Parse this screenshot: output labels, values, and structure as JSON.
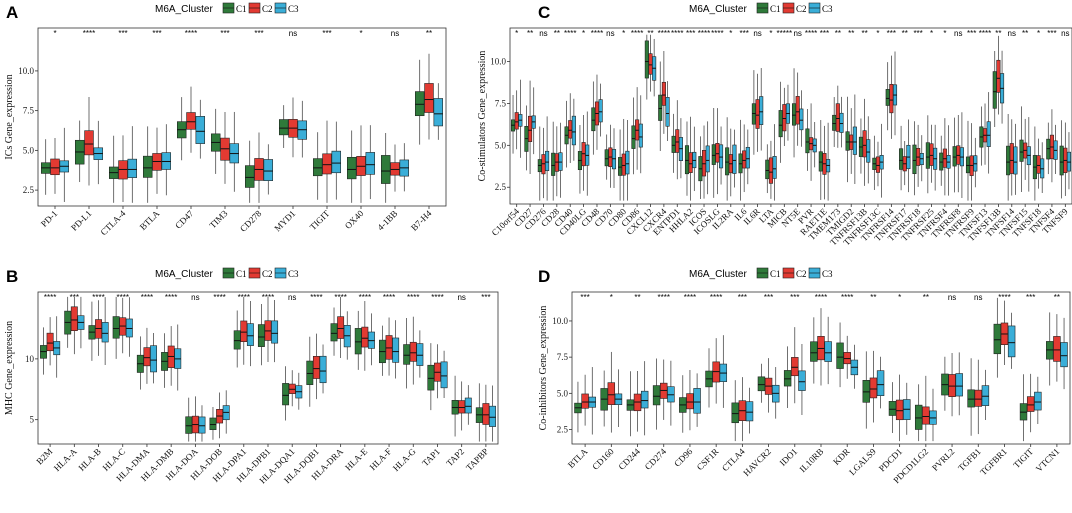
{
  "colors": {
    "C1": "#2f7a3a",
    "C2": "#e23a32",
    "C3": "#3aaed8"
  },
  "chart_data": [
    {
      "panel": "A",
      "type": "boxplot",
      "legend_title": "M6A_Cluster",
      "legend": [
        "C1",
        "C2",
        "C3"
      ],
      "ylabel": "ICs Gene_expression",
      "ylim": [
        1.5,
        12.7
      ],
      "yticks": [
        2.5,
        5.0,
        7.5,
        10.0
      ],
      "ytick_labels": [
        "2.5",
        "5.0",
        "7.5",
        "10.0"
      ],
      "categories": [
        "PD-1",
        "PD-L1",
        "CTLA-4",
        "BTLA",
        "CD47",
        "TIM3",
        "CD278",
        "MYD1",
        "TIGIT",
        "OX40",
        "4-1BB",
        "B7-H4"
      ],
      "significance": [
        "*",
        "****",
        "***",
        "***",
        "****",
        "***",
        "***",
        "ns",
        "***",
        "*",
        "ns",
        "**"
      ],
      "medians": [
        [
          3.9,
          3.9,
          4.0
        ],
        [
          4.9,
          5.4,
          4.8
        ],
        [
          3.6,
          3.8,
          3.8
        ],
        [
          3.9,
          4.3,
          4.3
        ],
        [
          6.3,
          6.8,
          6.2
        ],
        [
          5.5,
          5.1,
          4.8
        ],
        [
          3.3,
          3.8,
          3.7
        ],
        [
          6.4,
          6.4,
          6.3
        ],
        [
          3.9,
          4.1,
          4.2
        ],
        [
          3.8,
          4.0,
          4.1
        ],
        [
          3.7,
          3.8,
          3.9
        ],
        [
          7.9,
          8.2,
          7.3
        ]
      ]
    },
    {
      "panel": "B",
      "type": "boxplot",
      "legend_title": "M6A_Cluster",
      "legend": [
        "C1",
        "C2",
        "C3"
      ],
      "ylabel": "MHC Gene_expression",
      "ylim": [
        3.0,
        15.5
      ],
      "yticks": [
        5,
        10
      ],
      "ytick_labels": [
        "5",
        "10"
      ],
      "categories": [
        "B2M",
        "HLA-A",
        "HLA-B",
        "HLA-C",
        "HLA-DMA",
        "HLA-DMB",
        "HLA-DOA",
        "HLA-DOB",
        "HLA-DPA1",
        "HLA-DPB1",
        "HLA-DQA1",
        "HLA-DQB1",
        "HLA-DRA",
        "HLA-E",
        "HLA-F",
        "HLA-G",
        "TAP1",
        "TAP2",
        "TAPBP"
      ],
      "significance": [
        "****",
        "***",
        "****",
        "****",
        "****",
        "****",
        "ns",
        "****",
        "****",
        "****",
        "ns",
        "****",
        "****",
        "****",
        "****",
        "****",
        "****",
        "ns",
        "***"
      ],
      "medians": [
        [
          10.6,
          11.3,
          10.9
        ],
        [
          13.0,
          13.2,
          13.0
        ],
        [
          12.2,
          12.5,
          12.1
        ],
        [
          12.5,
          12.7,
          12.5
        ],
        [
          9.6,
          10.1,
          9.9
        ],
        [
          9.8,
          10.2,
          10.0
        ],
        [
          4.5,
          4.6,
          4.5
        ],
        [
          4.6,
          5.3,
          5.6
        ],
        [
          11.5,
          12.2,
          11.9
        ],
        [
          11.8,
          12.3,
          12.1
        ],
        [
          7.0,
          7.5,
          7.3
        ],
        [
          8.8,
          9.2,
          9.0
        ],
        [
          12.1,
          12.5,
          11.9
        ],
        [
          11.4,
          11.7,
          11.5
        ],
        [
          10.6,
          10.9,
          10.6
        ],
        [
          10.3,
          10.5,
          10.3
        ],
        [
          8.4,
          8.9,
          8.6
        ],
        [
          6.0,
          6.0,
          6.1
        ],
        [
          5.4,
          5.4,
          5.2
        ]
      ]
    },
    {
      "panel": "C",
      "type": "boxplot",
      "legend_title": "M6A_Cluster",
      "legend": [
        "C1",
        "C2",
        "C3"
      ],
      "ylabel": "Co-stimulators Gene_expression",
      "ylim": [
        1.5,
        12.0
      ],
      "yticks": [
        2.5,
        5.0,
        7.5,
        10.0
      ],
      "ytick_labels": [
        "2.5",
        "5.0",
        "7.5",
        "10.0"
      ],
      "categories": [
        "C10orf54",
        "CD27",
        "CD276",
        "CD28",
        "CD40",
        "CD40LG",
        "CD48",
        "CD70",
        "CD80",
        "CD86",
        "CXCL12",
        "CXCR4",
        "ENTPD1",
        "HHLA2",
        "ICOS",
        "ICOSLG",
        "IL2RA",
        "IL6",
        "IL6R",
        "LTA",
        "MICB",
        "NT5E",
        "PVR",
        "RAET1E",
        "TMEM173",
        "TMIGD2",
        "TNFRSF13B",
        "TNFRSF13C",
        "TNFRSF14",
        "TNFRSF17",
        "TNFRSF18",
        "TNFRSF25",
        "TNFRSF4",
        "TNFRSF8",
        "TNFRSF9",
        "TNFSF13",
        "TNFSF13B",
        "TNFSF14",
        "TNFSF15",
        "TNFSF18",
        "TNFSF4",
        "TNFSF9"
      ],
      "significance": [
        "*",
        "**",
        "ns",
        "**",
        "****",
        "*",
        "****",
        "ns",
        "*",
        "****",
        "**",
        "****",
        "****",
        "***",
        "****",
        "****",
        "*",
        "***",
        "ns",
        "*",
        "*****",
        "ns",
        "****",
        "***",
        "**",
        "**",
        "**",
        "*",
        "***",
        "**",
        "***",
        "*",
        "*",
        "ns",
        "***",
        "****",
        "**",
        "ns",
        "**",
        "*",
        "***",
        "ns"
      ],
      "medians": [
        [
          6.2,
          6.4,
          6.5
        ],
        [
          5.4,
          5.9,
          6.4
        ],
        [
          3.8,
          3.9,
          4.0
        ],
        [
          3.8,
          4.0,
          4.0
        ],
        [
          5.6,
          5.9,
          5.8
        ],
        [
          4.1,
          4.5,
          4.4
        ],
        [
          6.5,
          6.9,
          7.0
        ],
        [
          4.2,
          4.3,
          4.2
        ],
        [
          3.7,
          3.8,
          3.9
        ],
        [
          5.4,
          5.9,
          5.5
        ],
        [
          10.0,
          9.8,
          9.6
        ],
        [
          7.2,
          8.0,
          6.9
        ],
        [
          5.0,
          5.2,
          4.8
        ],
        [
          4.1,
          3.9,
          4.1
        ],
        [
          3.6,
          3.9,
          4.1
        ],
        [
          4.4,
          4.5,
          4.3
        ],
        [
          4.0,
          3.9,
          4.1
        ],
        [
          3.9,
          4.1,
          4.2
        ],
        [
          6.9,
          6.8,
          7.0
        ],
        [
          3.5,
          3.4,
          3.6
        ],
        [
          6.2,
          6.6,
          6.9
        ],
        [
          6.8,
          7.0,
          6.5
        ],
        [
          5.2,
          5.1,
          5.0
        ],
        [
          4.0,
          3.9,
          3.8
        ],
        [
          6.3,
          6.6,
          6.3
        ],
        [
          5.2,
          5.2,
          5.2
        ],
        [
          4.9,
          5.0,
          4.6
        ],
        [
          3.9,
          3.8,
          4.0
        ],
        [
          7.8,
          7.7,
          8.0
        ],
        [
          4.1,
          3.9,
          4.3
        ],
        [
          4.1,
          4.3,
          4.2
        ],
        [
          4.3,
          4.4,
          4.2
        ],
        [
          4.0,
          4.2,
          4.0
        ],
        [
          4.3,
          4.4,
          4.3
        ],
        [
          3.8,
          3.8,
          3.9
        ],
        [
          5.5,
          5.6,
          5.6
        ],
        [
          8.2,
          9.0,
          8.4
        ],
        [
          4.0,
          4.1,
          4.0
        ],
        [
          4.6,
          4.7,
          4.4
        ],
        [
          3.7,
          3.8,
          3.6
        ],
        [
          4.8,
          4.9,
          4.7
        ],
        [
          4.0,
          4.1,
          4.0
        ]
      ]
    },
    {
      "panel": "D",
      "type": "boxplot",
      "legend_title": "M6A_Cluster",
      "legend": [
        "C1",
        "C2",
        "C3"
      ],
      "ylabel": "Co-inhibitors Gene_expression",
      "ylim": [
        1.5,
        12.0
      ],
      "yticks": [
        2.5,
        5.0,
        7.5,
        10.0
      ],
      "ytick_labels": [
        "2.5",
        "5.0",
        "7.5",
        "10.0"
      ],
      "categories": [
        "BTLA",
        "CD160",
        "CD244",
        "CD274",
        "CD96",
        "CSF1R",
        "CTLA4",
        "HAVCR2",
        "IDO1",
        "IL10RB",
        "KDR",
        "LGALS9",
        "PDCD1",
        "PDCD1LG2",
        "PVRL2",
        "TGFB1",
        "TGFBR1",
        "TIGIT",
        "VTCN1"
      ],
      "significance": [
        "***",
        "*",
        "**",
        "****",
        "****",
        "****",
        "***",
        "***",
        "***",
        "****",
        "****",
        "**",
        "*",
        "**",
        "ns",
        "ns",
        "****",
        "***",
        "**"
      ],
      "medians": [
        [
          4.0,
          4.4,
          4.4
        ],
        [
          4.6,
          4.9,
          4.6
        ],
        [
          4.2,
          4.4,
          4.5
        ],
        [
          4.8,
          5.2,
          4.9
        ],
        [
          4.2,
          4.4,
          4.4
        ],
        [
          6.0,
          6.5,
          6.4
        ],
        [
          3.6,
          3.8,
          3.7
        ],
        [
          5.6,
          5.5,
          5.0
        ],
        [
          6.0,
          6.8,
          5.8
        ],
        [
          7.8,
          8.1,
          7.8
        ],
        [
          7.5,
          7.4,
          6.8
        ],
        [
          5.1,
          5.3,
          5.6
        ],
        [
          3.9,
          3.8,
          3.9
        ],
        [
          3.3,
          3.4,
          3.3
        ],
        [
          5.6,
          5.5,
          5.5
        ],
        [
          4.6,
          4.6,
          4.8
        ],
        [
          8.7,
          9.1,
          8.5
        ],
        [
          3.7,
          4.2,
          4.4
        ],
        [
          8.0,
          8.0,
          7.6
        ]
      ]
    }
  ]
}
